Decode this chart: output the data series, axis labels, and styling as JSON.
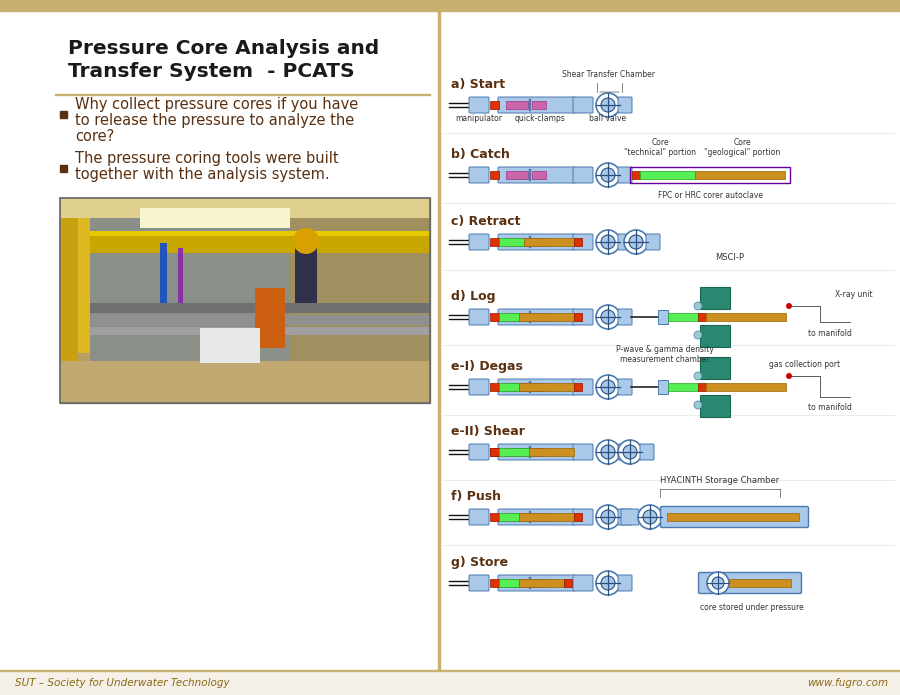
{
  "slide_bg": "#ffffff",
  "title_line1": "Pressure Core Analysis and",
  "title_line2": "Transfer System  - PCATS",
  "title_color": "#1a1a1a",
  "title_fontsize": 14.5,
  "bullet_color": "#5a3010",
  "bullet_fontsize": 10.5,
  "bullet1_line1": "Why collect pressure cores if you have",
  "bullet1_line2": "to release the pressure to analyze the",
  "bullet1_line3": "core?",
  "bullet2_line1": "The pressure coring tools were built",
  "bullet2_line2": "together with the analysis system.",
  "footer_left": "SUT – Society for Underwater Technology",
  "footer_right": "www.fugro.com",
  "footer_color": "#8b6914",
  "footer_fontsize": 7.5,
  "divider_color": "#c8b070",
  "diagram_steps": [
    "a) Start",
    "b) Catch",
    "c) Retract",
    "d) Log",
    "e-I) Degas",
    "e-II) Shear",
    "f) Push",
    "g) Store"
  ],
  "ann_color": "#333333",
  "ann_fs": 5.5,
  "blue_light": "#aac8e8",
  "blue_mid": "#4a7ab0",
  "blue_dark": "#2a5080",
  "green_bright": "#55ee55",
  "orange_core": "#cc9020",
  "red_small": "#dd3300",
  "pink_part": "#cc66aa",
  "teal_box": "#2a8870",
  "white": "#ffffff",
  "purple_outline": "#660099"
}
